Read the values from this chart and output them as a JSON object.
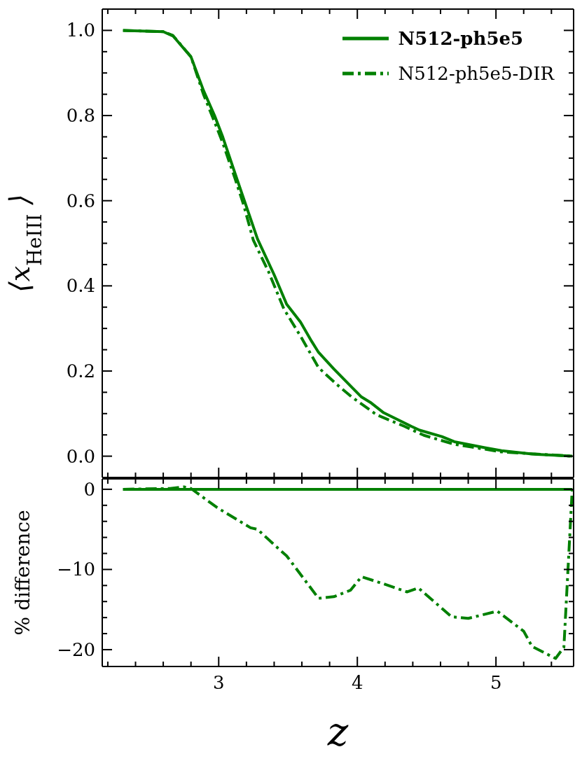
{
  "chart_data": [
    {
      "type": "line",
      "ylabel": "⟨x$_{HeIII}$⟩",
      "xlim": [
        2.16,
        5.56
      ],
      "ylim": [
        -0.05,
        1.05
      ],
      "xticks": [
        {
          "value": 2.2,
          "label": null
        },
        {
          "value": 2.4,
          "label": null
        },
        {
          "value": 2.6,
          "label": null
        },
        {
          "value": 2.8,
          "label": null
        },
        3,
        {
          "value": 3.2,
          "label": null
        },
        {
          "value": 3.4,
          "label": null
        },
        {
          "value": 3.6,
          "label": null
        },
        {
          "value": 3.8,
          "label": null
        },
        4,
        {
          "value": 4.2,
          "label": null
        },
        {
          "value": 4.4,
          "label": null
        },
        {
          "value": 4.6,
          "label": null
        },
        {
          "value": 4.8,
          "label": null
        },
        5,
        {
          "value": 5.2,
          "label": null
        },
        {
          "value": 5.4,
          "label": null
        }
      ],
      "yticks": [
        {
          "value": 0,
          "label": "0.0"
        },
        {
          "value": 0.05,
          "label": null
        },
        {
          "value": 0.1,
          "label": null
        },
        {
          "value": 0.15,
          "label": null
        },
        0.2,
        {
          "value": 0.25,
          "label": null
        },
        {
          "value": 0.3,
          "label": null
        },
        {
          "value": 0.35,
          "label": null
        },
        0.4,
        {
          "value": 0.45,
          "label": null
        },
        {
          "value": 0.5,
          "label": null
        },
        {
          "value": 0.55,
          "label": null
        },
        0.6,
        {
          "value": 0.65,
          "label": null
        },
        {
          "value": 0.7,
          "label": null
        },
        {
          "value": 0.75,
          "label": null
        },
        0.8,
        {
          "value": 0.85,
          "label": null
        },
        {
          "value": 0.9,
          "label": null
        },
        {
          "value": 0.95,
          "label": null
        },
        {
          "value": 1,
          "label": "1.0"
        }
      ],
      "tick_labels": "y",
      "legend": "top right",
      "series": [
        {
          "name": "N512-ph5e5",
          "color": "#008000",
          "line_style": "solid",
          "x": [
            2.31,
            2.6,
            2.67,
            2.8,
            2.89,
            2.97,
            3.03,
            3.12,
            3.18,
            3.28,
            3.4,
            3.49,
            3.59,
            3.67,
            3.72,
            3.83,
            3.96,
            4.03,
            4.1,
            4.19,
            4.39,
            4.45,
            4.61,
            4.7,
            4.92,
            5.04,
            5.26,
            5.55
          ],
          "values": [
            1.0,
            0.997,
            0.987,
            0.938,
            0.859,
            0.8,
            0.749,
            0.662,
            0.605,
            0.51,
            0.426,
            0.357,
            0.315,
            0.27,
            0.244,
            0.205,
            0.162,
            0.139,
            0.125,
            0.102,
            0.07,
            0.061,
            0.046,
            0.034,
            0.02,
            0.013,
            0.005,
            0.0
          ]
        },
        {
          "name": "N512-ph5e5-DIR",
          "color": "#008000",
          "line_style": "dashdot",
          "x": [
            2.31,
            2.6,
            2.67,
            2.8,
            2.89,
            2.97,
            3.03,
            3.12,
            3.18,
            3.25,
            3.36,
            3.47,
            3.59,
            3.72,
            3.85,
            3.96,
            4.14,
            4.34,
            4.48,
            4.7,
            5.04,
            5.55
          ],
          "values": [
            1.0,
            0.997,
            0.988,
            0.938,
            0.85,
            0.785,
            0.735,
            0.65,
            0.59,
            0.507,
            0.433,
            0.346,
            0.282,
            0.208,
            0.169,
            0.139,
            0.097,
            0.07,
            0.049,
            0.028,
            0.01,
            0.0
          ]
        }
      ]
    },
    {
      "type": "line",
      "xlabel": "z",
      "ylabel": "% difference",
      "xlim": [
        2.16,
        5.56
      ],
      "ylim": [
        -22.1,
        1.3
      ],
      "xticks": [
        {
          "value": 2.2,
          "label": null
        },
        {
          "value": 2.4,
          "label": null
        },
        {
          "value": 2.6,
          "label": null
        },
        {
          "value": 2.8,
          "label": null
        },
        3,
        {
          "value": 3.2,
          "label": null
        },
        {
          "value": 3.4,
          "label": null
        },
        {
          "value": 3.6,
          "label": null
        },
        {
          "value": 3.8,
          "label": null
        },
        4,
        {
          "value": 4.2,
          "label": null
        },
        {
          "value": 4.4,
          "label": null
        },
        {
          "value": 4.6,
          "label": null
        },
        {
          "value": 4.8,
          "label": null
        },
        5,
        {
          "value": 5.2,
          "label": null
        },
        {
          "value": 5.4,
          "label": null
        }
      ],
      "yticks": [
        {
          "value": -20,
          "label": "−20"
        },
        {
          "value": -18,
          "label": null
        },
        {
          "value": -16,
          "label": null
        },
        {
          "value": -14,
          "label": null
        },
        {
          "value": -12,
          "label": null
        },
        {
          "value": -10,
          "label": "−10"
        },
        {
          "value": -8,
          "label": null
        },
        {
          "value": -6,
          "label": null
        },
        {
          "value": -4,
          "label": null
        },
        {
          "value": -2,
          "label": null
        },
        0
      ],
      "series": [
        {
          "color": "#008000",
          "line_style": "solid",
          "x": [
            2.31,
            5.55
          ],
          "values": [
            0,
            0
          ]
        },
        {
          "color": "#008000",
          "line_style": "dashdot",
          "x": [
            2.31,
            2.65,
            2.75,
            2.8,
            2.99,
            3.23,
            3.28,
            3.45,
            3.49,
            3.72,
            3.83,
            3.95,
            4.03,
            4.19,
            4.36,
            4.44,
            4.68,
            4.8,
            5.01,
            5.2,
            5.26,
            5.43,
            5.49,
            5.55
          ],
          "values": [
            0,
            0.1,
            0.3,
            0.1,
            -2.3,
            -4.8,
            -5.0,
            -7.7,
            -8.3,
            -13.6,
            -13.4,
            -12.6,
            -10.9,
            -11.8,
            -12.8,
            -12.3,
            -15.9,
            -16.1,
            -15.2,
            -17.7,
            -19.6,
            -21.1,
            -19.7,
            0
          ]
        }
      ]
    }
  ]
}
